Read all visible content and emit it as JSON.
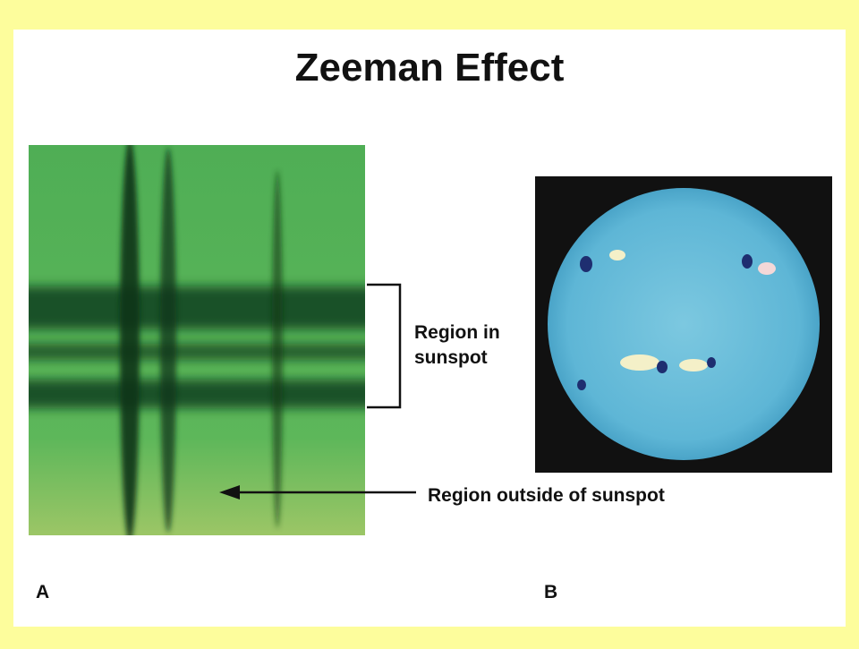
{
  "title": "Zeeman Effect",
  "panel_a": {
    "label": "A",
    "sunspot_label": [
      "Region in",
      "sunspot"
    ],
    "outside_label": "Region outside of sunspot"
  },
  "panel_b": {
    "label": "B"
  }
}
